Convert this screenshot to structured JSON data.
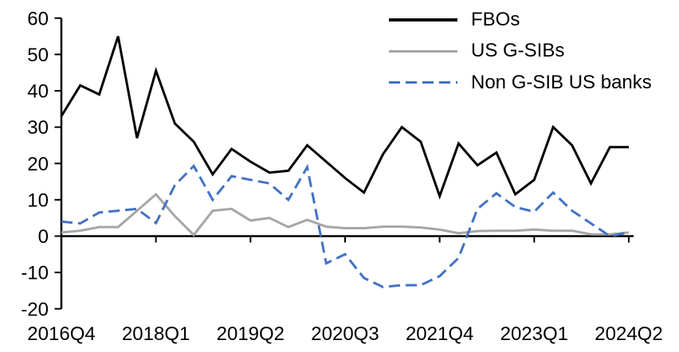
{
  "chart_data": {
    "type": "line",
    "title": "",
    "categories": [
      "2016Q4",
      "2017Q1",
      "2017Q2",
      "2017Q3",
      "2017Q4",
      "2018Q1",
      "2018Q2",
      "2018Q3",
      "2018Q4",
      "2019Q1",
      "2019Q2",
      "2019Q3",
      "2019Q4",
      "2020Q1",
      "2020Q2",
      "2020Q3",
      "2020Q4",
      "2021Q1",
      "2021Q2",
      "2021Q3",
      "2021Q4",
      "2022Q1",
      "2022Q2",
      "2022Q3",
      "2022Q4",
      "2023Q1",
      "2023Q2",
      "2023Q3",
      "2023Q4",
      "2024Q1",
      "2024Q2"
    ],
    "x_tick_indices": [
      0,
      5,
      10,
      15,
      20,
      25,
      30
    ],
    "x_tick_labels": [
      "2016Q4",
      "2018Q1",
      "2019Q2",
      "2020Q3",
      "2021Q4",
      "2023Q1",
      "2024Q2"
    ],
    "y_axis": {
      "min": -20,
      "max": 60,
      "step": 10,
      "tick_values": [
        60,
        50,
        40,
        30,
        20,
        10,
        0,
        -10,
        -20
      ],
      "tick_labels": [
        "60",
        "50",
        "40",
        "30",
        "20",
        "10",
        "0",
        "-10",
        "-20"
      ]
    },
    "grid": false,
    "legend_position": "top-right",
    "axis_color": "#000000",
    "series": [
      {
        "name": "FBOs",
        "color": "#000000",
        "style": "solid",
        "values": [
          33,
          41.5,
          39,
          55,
          27,
          45.5,
          31,
          26,
          17,
          24,
          20.5,
          17.5,
          18,
          25,
          20.5,
          16,
          12,
          22.5,
          30,
          26,
          11,
          25.5,
          19.5,
          23,
          11.5,
          15.5,
          30,
          25,
          14.5,
          24.5,
          24.5
        ]
      },
      {
        "name": "US G-SIBs",
        "color": "#A6A6A6",
        "style": "solid",
        "values": [
          1,
          1.5,
          2.5,
          2.5,
          7,
          11.5,
          5.5,
          0.3,
          7,
          7.5,
          4.3,
          5,
          2.5,
          4.5,
          2.6,
          2.2,
          2.2,
          2.6,
          2.6,
          2.4,
          1.8,
          0.8,
          1.4,
          1.5,
          1.5,
          1.8,
          1.5,
          1.5,
          0.5,
          0.5,
          1
        ]
      },
      {
        "name": "Non G-SIB US banks",
        "color": "#4472C4",
        "style": "dashed",
        "values": [
          4,
          3.5,
          6.5,
          7,
          7.5,
          3.6,
          14,
          19.3,
          10,
          16.5,
          15.5,
          14.5,
          10,
          19,
          -7.5,
          -5,
          -11.5,
          -14,
          -13.5,
          -13.5,
          -11,
          -6,
          7.5,
          11.8,
          8,
          6.7,
          12,
          7,
          3.5,
          0,
          1
        ]
      }
    ]
  }
}
